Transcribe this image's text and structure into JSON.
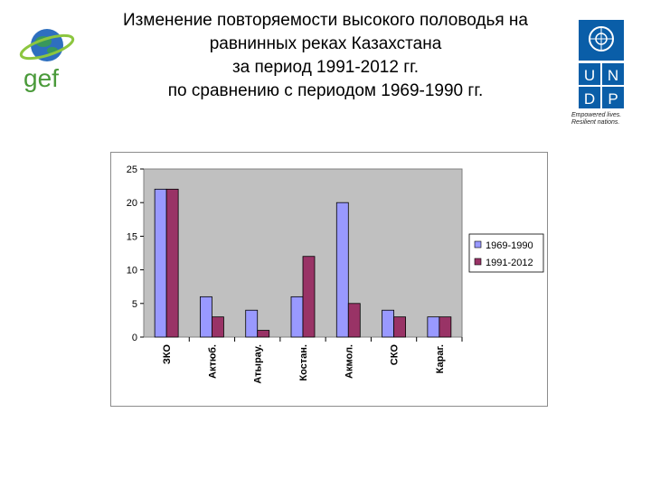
{
  "header": {
    "title_lines": [
      "Изменение повторяемости высокого половодья на",
      "равнинных реках Казахстана",
      "за период 1991-2012 гг.",
      "по сравнению с периодом 1969-1990 гг."
    ]
  },
  "logos": {
    "gef_text": "gef",
    "undp_letters": [
      "U",
      "N",
      "D",
      "P"
    ],
    "undp_tagline": [
      "Empowered lives.",
      "Resilient nations."
    ]
  },
  "colors": {
    "series_1": "#9999ff",
    "series_2": "#993366",
    "plot_background": "#c0c0c0",
    "gef_green": "#4a9a3a",
    "gef_blue": "#1f5fa8",
    "undp_blue": "#0a5ea8"
  },
  "chart_data": {
    "type": "bar",
    "categories": [
      "ЗКО",
      "Актюб.",
      "Атырау.",
      "Костан.",
      "Акмол.",
      "СКО",
      "Караг."
    ],
    "series": [
      {
        "name": "1969-1990",
        "values": [
          22,
          6,
          4,
          6,
          20,
          4,
          3
        ]
      },
      {
        "name": "1991-2012",
        "values": [
          22,
          3,
          1,
          12,
          5,
          3,
          3
        ]
      }
    ],
    "ylim": [
      0,
      25
    ],
    "yticks": [
      0,
      5,
      10,
      15,
      20,
      25
    ],
    "grid": false,
    "legend": "right"
  }
}
